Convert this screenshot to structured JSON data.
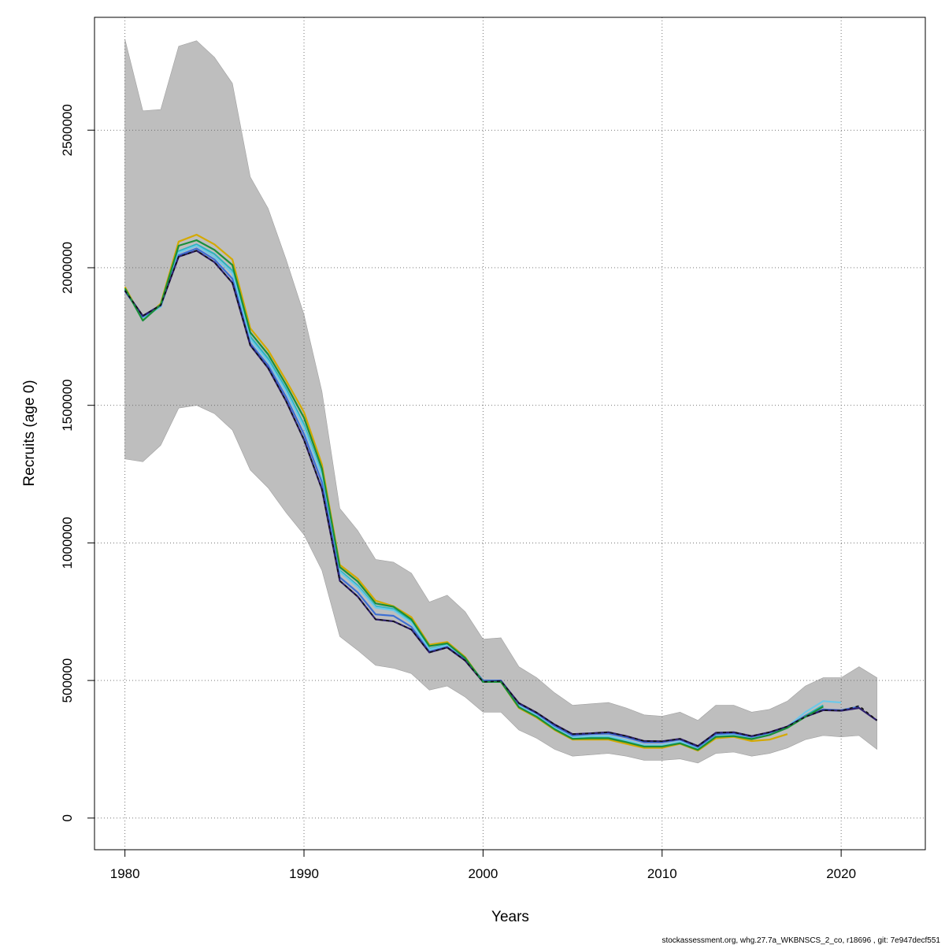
{
  "chart_data": {
    "type": "line",
    "xlabel": "Years",
    "ylabel": "Recruits (age 0)",
    "xlim": [
      1978.3,
      2024.7
    ],
    "ylim": [
      -115000,
      2910000
    ],
    "xticks": [
      1980,
      1990,
      2000,
      2010,
      2020
    ],
    "yticks": [
      0,
      500000,
      1000000,
      1500000,
      2000000,
      2500000
    ],
    "ytick_labels": [
      "0",
      "500000",
      "1000000",
      "1500000",
      "2000000",
      "2500000"
    ],
    "xtick_labels": [
      "1980",
      "1990",
      "2000",
      "2010",
      "2020"
    ],
    "grid": true,
    "footer": "stockassessment.org, whg.27.7a_WKBNSCS_2_co, r18696 , git: 7e947decf551",
    "band": {
      "color": "#bebebe",
      "x": [
        1980,
        1981,
        1982,
        1983,
        1984,
        1985,
        1986,
        1987,
        1988,
        1989,
        1990,
        1991,
        1992,
        1993,
        1994,
        1995,
        1996,
        1997,
        1998,
        1999,
        2000,
        2001,
        2002,
        2003,
        2004,
        2005,
        2006,
        2007,
        2008,
        2009,
        2010,
        2011,
        2012,
        2013,
        2014,
        2015,
        2016,
        2017,
        2018,
        2019,
        2020,
        2021,
        2022
      ],
      "upper": [
        2830000,
        2570000,
        2575000,
        2805000,
        2825000,
        2765000,
        2670000,
        2330000,
        2215000,
        2030000,
        1830000,
        1550000,
        1125000,
        1045000,
        940000,
        930000,
        890000,
        785000,
        810000,
        750000,
        650000,
        655000,
        550000,
        510000,
        455000,
        410000,
        415000,
        420000,
        400000,
        375000,
        370000,
        385000,
        355000,
        410000,
        410000,
        385000,
        395000,
        425000,
        480000,
        510000,
        510000,
        550000,
        510000
      ],
      "lower": [
        1305000,
        1295000,
        1355000,
        1490000,
        1500000,
        1470000,
        1410000,
        1265000,
        1200000,
        1110000,
        1030000,
        900000,
        660000,
        610000,
        555000,
        545000,
        525000,
        465000,
        480000,
        440000,
        385000,
        385000,
        320000,
        290000,
        250000,
        225000,
        230000,
        235000,
        225000,
        210000,
        210000,
        215000,
        200000,
        235000,
        240000,
        225000,
        235000,
        255000,
        285000,
        300000,
        295000,
        300000,
        250000
      ]
    },
    "series": [
      {
        "color": "#d4a900",
        "x": [
          1980,
          1981,
          1982,
          1983,
          1984,
          1985,
          1986,
          1987,
          1988,
          1989,
          1990,
          1991,
          1992,
          1993,
          1994,
          1995,
          1996,
          1997,
          1998,
          1999,
          2000,
          2001,
          2002,
          2003,
          2004,
          2005,
          2006,
          2007,
          2008,
          2009,
          2010,
          2011,
          2012,
          2013,
          2014,
          2015,
          2016,
          2017
        ],
        "values": [
          1930000,
          1810000,
          1870000,
          2095000,
          2120000,
          2085000,
          2030000,
          1780000,
          1700000,
          1590000,
          1475000,
          1285000,
          920000,
          870000,
          790000,
          770000,
          730000,
          630000,
          640000,
          585000,
          495000,
          495000,
          400000,
          365000,
          320000,
          285000,
          285000,
          285000,
          270000,
          255000,
          255000,
          270000,
          245000,
          290000,
          295000,
          280000,
          285000,
          305000
        ]
      },
      {
        "color": "#2db3c0",
        "x": [
          1980,
          1981,
          1982,
          1983,
          1984,
          1985,
          1986,
          1987,
          1988,
          1989,
          1990,
          1991,
          1992,
          1993,
          1994,
          1995,
          1996,
          1997,
          1998,
          1999,
          2000,
          2001,
          2002,
          2003,
          2004,
          2005,
          2006,
          2007,
          2008,
          2009,
          2010,
          2011,
          2012,
          2013,
          2014,
          2015,
          2016,
          2017,
          2018,
          2019
        ],
        "values": [
          1920000,
          1820000,
          1860000,
          2060000,
          2085000,
          2050000,
          1990000,
          1750000,
          1670000,
          1560000,
          1430000,
          1250000,
          900000,
          845000,
          770000,
          760000,
          715000,
          615000,
          630000,
          580000,
          495000,
          495000,
          405000,
          370000,
          325000,
          290000,
          295000,
          295000,
          280000,
          262000,
          262000,
          275000,
          250000,
          298000,
          300000,
          290000,
          305000,
          328000,
          372000,
          410000
        ]
      },
      {
        "color": "#6ec9e8",
        "x": [
          1980,
          1981,
          1982,
          1983,
          1984,
          1985,
          1986,
          1987,
          1988,
          1989,
          1990,
          1991,
          1992,
          1993,
          1994,
          1995,
          1996,
          1997,
          1998,
          1999,
          2000,
          2001,
          2002,
          2003,
          2004,
          2005,
          2006,
          2007,
          2008,
          2009,
          2010,
          2011,
          2012,
          2013,
          2014,
          2015,
          2016,
          2017,
          2018,
          2019,
          2020
        ],
        "values": [
          1918000,
          1818000,
          1858000,
          2055000,
          2080000,
          2040000,
          1980000,
          1740000,
          1660000,
          1550000,
          1420000,
          1245000,
          895000,
          840000,
          765000,
          755000,
          710000,
          612000,
          628000,
          578000,
          498000,
          498000,
          408000,
          373000,
          328000,
          293000,
          298000,
          298000,
          283000,
          265000,
          265000,
          278000,
          253000,
          300000,
          303000,
          292000,
          308000,
          332000,
          385000,
          425000,
          420000
        ]
      },
      {
        "color": "#3d6fd4",
        "x": [
          1980,
          1981,
          1982,
          1983,
          1984,
          1985,
          1986,
          1987,
          1988,
          1989,
          1990,
          1991,
          1992,
          1993,
          1994,
          1995,
          1996,
          1997,
          1998,
          1999,
          2000,
          2001,
          2002,
          2003,
          2004,
          2005,
          2006,
          2007,
          2008,
          2009,
          2010,
          2011,
          2012,
          2013,
          2014,
          2015,
          2016,
          2017,
          2018,
          2019,
          2020,
          2021
        ],
        "values": [
          1915000,
          1822000,
          1862000,
          2045000,
          2070000,
          2030000,
          1960000,
          1725000,
          1645000,
          1530000,
          1395000,
          1220000,
          875000,
          820000,
          740000,
          735000,
          695000,
          605000,
          622000,
          575000,
          500000,
          500000,
          415000,
          380000,
          335000,
          300000,
          305000,
          307000,
          293000,
          275000,
          275000,
          285000,
          258000,
          305000,
          308000,
          295000,
          310000,
          332000,
          372000,
          395000,
          392000,
          405000
        ]
      },
      {
        "color": "#2e1f6e",
        "x": [
          1980,
          1981,
          1982,
          1983,
          1984,
          1985,
          1986,
          1987,
          1988,
          1989,
          1990,
          1991,
          1992,
          1993,
          1994,
          1995,
          1996,
          1997,
          1998,
          1999,
          2000,
          2001,
          2002,
          2003,
          2004,
          2005,
          2006,
          2007,
          2008,
          2009,
          2010,
          2011,
          2012,
          2013,
          2014,
          2015,
          2016,
          2017,
          2018,
          2019,
          2020,
          2021,
          2022
        ],
        "values": [
          1917000,
          1825000,
          1864000,
          2040000,
          2062000,
          2020000,
          1945000,
          1718000,
          1635000,
          1515000,
          1375000,
          1195000,
          862000,
          805000,
          722000,
          715000,
          685000,
          602000,
          620000,
          572000,
          495000,
          498000,
          418000,
          383000,
          340000,
          305000,
          308000,
          312000,
          298000,
          280000,
          279000,
          288000,
          262000,
          310000,
          312000,
          298000,
          312000,
          333000,
          368000,
          392000,
          390000,
          400000,
          355000
        ]
      },
      {
        "color": "#1a8f3a",
        "x": [
          1980,
          1981,
          1982,
          1983,
          1984,
          1985,
          1986,
          1987,
          1988,
          1989,
          1990,
          1991,
          1992,
          1993,
          1994,
          1995,
          1996,
          1997,
          1998,
          1999,
          2000,
          2001,
          2002,
          2003,
          2004,
          2005,
          2006,
          2007,
          2008,
          2009,
          2010,
          2011,
          2012,
          2013,
          2014,
          2015,
          2016,
          2017,
          2018,
          2019
        ],
        "values": [
          1925000,
          1808000,
          1866000,
          2080000,
          2100000,
          2065000,
          2010000,
          1765000,
          1685000,
          1575000,
          1455000,
          1270000,
          912000,
          860000,
          780000,
          768000,
          722000,
          625000,
          635000,
          582000,
          495000,
          495000,
          403000,
          368000,
          323000,
          288000,
          290000,
          290000,
          276000,
          260000,
          260000,
          272000,
          248000,
          295000,
          298000,
          287000,
          302000,
          328000,
          368000,
          405000
        ]
      },
      {
        "color": "#111111",
        "dash": "4,4",
        "x": [
          1980,
          1981,
          1982,
          1983,
          1984,
          1985,
          1986,
          1987,
          1988,
          1989,
          1990,
          1991,
          1992,
          1993,
          1994,
          1995,
          1996,
          1997,
          1998,
          1999,
          2000,
          2001,
          2002,
          2003,
          2004,
          2005,
          2006,
          2007,
          2008,
          2009,
          2010,
          2011,
          2012,
          2013,
          2014,
          2015,
          2016,
          2017,
          2018,
          2019,
          2020,
          2021,
          2022
        ],
        "values": [
          1917000,
          1825000,
          1864000,
          2040000,
          2062000,
          2020000,
          1945000,
          1718000,
          1635000,
          1515000,
          1375000,
          1195000,
          862000,
          805000,
          722000,
          715000,
          685000,
          602000,
          620000,
          572000,
          495000,
          498000,
          418000,
          383000,
          340000,
          305000,
          308000,
          312000,
          298000,
          280000,
          279000,
          288000,
          262000,
          310000,
          312000,
          298000,
          312000,
          333000,
          368000,
          392000,
          390000,
          408000,
          355000
        ]
      }
    ]
  }
}
